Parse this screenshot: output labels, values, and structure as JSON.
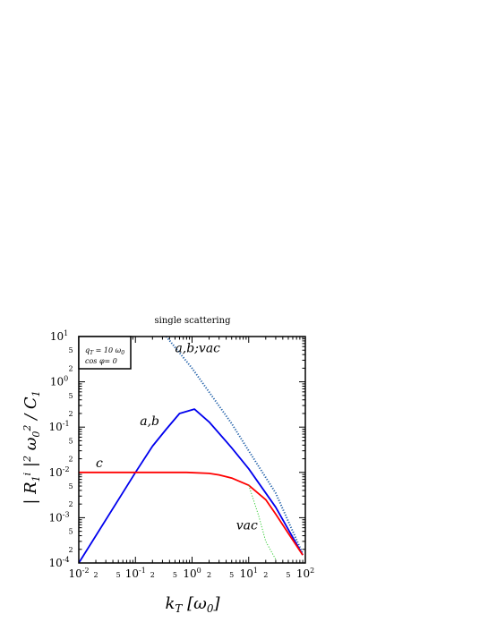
{
  "chart_data": {
    "type": "line",
    "title": "single scattering",
    "xlabel": "k_T [ω_0]",
    "ylabel": "| R_1^i |^2 ω_0^2 / C_1",
    "x_scale": "log",
    "y_scale": "log",
    "xlim": [
      0.01,
      100
    ],
    "ylim": [
      0.0001,
      10
    ],
    "x_tick_labels": [
      {
        "value": 0.01,
        "mant": "10",
        "exp": "-2"
      },
      {
        "value": 0.1,
        "mant": "10",
        "exp": "-1"
      },
      {
        "value": 1,
        "mant": "10",
        "exp": "0"
      },
      {
        "value": 10,
        "mant": "10",
        "exp": "1"
      },
      {
        "value": 100,
        "mant": "10",
        "exp": "2"
      }
    ],
    "y_tick_labels": [
      {
        "value": 10,
        "mant": "10",
        "exp": "1"
      },
      {
        "value": 1,
        "mant": "10",
        "exp": "0"
      },
      {
        "value": 0.1,
        "mant": "10",
        "exp": "-1"
      },
      {
        "value": 0.01,
        "mant": "10",
        "exp": "-2"
      },
      {
        "value": 0.001,
        "mant": "10",
        "exp": "-3"
      },
      {
        "value": 0.0001,
        "mant": "10",
        "exp": "-4"
      }
    ],
    "minor_labels": [
      "2",
      "5"
    ],
    "legend": {
      "position": "top-left",
      "line1": {
        "base": "q",
        "sub": "T",
        "rest": " = 10 ω",
        "sub2": "0"
      },
      "line2": "cos φ= 0"
    },
    "annotations": [
      {
        "text": "a,b;vac",
        "x": 0.5,
        "y": 4.5
      },
      {
        "text": "a,b",
        "x": 0.12,
        "y": 0.11
      },
      {
        "text": "c",
        "x": 0.02,
        "y": 0.013
      },
      {
        "text": "vac",
        "x": 6,
        "y": 0.00055
      }
    ],
    "series": [
      {
        "style": "dotted",
        "color": "#1f5fa8",
        "x": [
          0.35,
          1,
          5,
          10,
          30,
          90
        ],
        "y": [
          10,
          2,
          0.12,
          0.03,
          0.0035,
          0.00016
        ]
      },
      {
        "style": "solid",
        "color": "#0000ee",
        "x": [
          0.01,
          0.1,
          0.2,
          0.35,
          0.6,
          1.1,
          2,
          5,
          10,
          30,
          90
        ],
        "y": [
          0.0001,
          0.01,
          0.038,
          0.09,
          0.2,
          0.25,
          0.13,
          0.035,
          0.012,
          0.0017,
          0.00015
        ]
      },
      {
        "style": "solid",
        "color": "#ff0000",
        "x": [
          0.01,
          0.1,
          0.8,
          2,
          3,
          5,
          10,
          20,
          30,
          50,
          90
        ],
        "y": [
          0.01,
          0.01,
          0.01,
          0.0095,
          0.0088,
          0.0075,
          0.0052,
          0.0025,
          0.0012,
          0.00045,
          0.00015
        ]
      },
      {
        "style": "dotted",
        "color": "#33cc33",
        "x": [
          10,
          15,
          20,
          30
        ],
        "y": [
          0.0052,
          0.0011,
          0.0003,
          0.00012
        ]
      }
    ]
  }
}
